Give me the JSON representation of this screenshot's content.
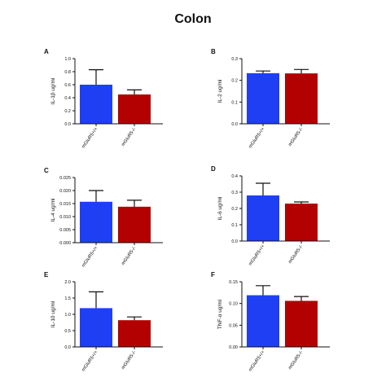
{
  "figure": {
    "title": "Colon"
  },
  "colors": {
    "wt": "#1f3ff5",
    "ko": "#b30000",
    "axis": "#111111"
  },
  "chart_data": [
    {
      "type": "bar",
      "panel": "A",
      "ylabel": "IL-1β ug/ml",
      "categories": [
        "mGluR5+/+",
        "mGluR5-/-"
      ],
      "values": [
        0.6,
        0.45
      ],
      "errors": [
        0.23,
        0.07
      ],
      "ylim": [
        0,
        1.0
      ],
      "yticks": [
        "0.0",
        "0.2",
        "0.4",
        "0.6",
        "0.8",
        "1.0"
      ],
      "ytick_values": [
        0,
        0.2,
        0.4,
        0.6,
        0.8,
        1.0
      ]
    },
    {
      "type": "bar",
      "panel": "B",
      "ylabel": "IL-2 ug/ml",
      "categories": [
        "mGluR5+/+",
        "mGluR5-/-"
      ],
      "values": [
        0.233,
        0.232
      ],
      "errors": [
        0.01,
        0.018
      ],
      "ylim": [
        0,
        0.3
      ],
      "yticks": [
        "0.0",
        "0.1",
        "0.2",
        "0.3"
      ],
      "ytick_values": [
        0,
        0.1,
        0.2,
        0.3
      ]
    },
    {
      "type": "bar",
      "panel": "C",
      "ylabel": "IL-4 ug/ml",
      "categories": [
        "mGluR5+/+",
        "mGluR5-/-"
      ],
      "values": [
        0.0157,
        0.0138
      ],
      "errors": [
        0.0043,
        0.0025
      ],
      "ylim": [
        0,
        0.025
      ],
      "yticks": [
        "0.000",
        "0.005",
        "0.010",
        "0.015",
        "0.020",
        "0.025"
      ],
      "ytick_values": [
        0,
        0.005,
        0.01,
        0.015,
        0.02,
        0.025
      ]
    },
    {
      "type": "bar",
      "panel": "D",
      "ylabel": "IL-6 ug/ml",
      "categories": [
        "mGluR5+/+",
        "mGluR5-/-"
      ],
      "values": [
        0.28,
        0.23
      ],
      "errors": [
        0.075,
        0.01
      ],
      "ylim": [
        0,
        0.4
      ],
      "yticks": [
        "0.0",
        "0.1",
        "0.2",
        "0.3",
        "0.4"
      ],
      "ytick_values": [
        0,
        0.1,
        0.2,
        0.3,
        0.4
      ]
    },
    {
      "type": "bar",
      "panel": "E",
      "ylabel": "IL-10 ug/ml",
      "categories": [
        "mGluR5+/+",
        "mGluR5-/-"
      ],
      "values": [
        1.19,
        0.82
      ],
      "errors": [
        0.5,
        0.1
      ],
      "ylim": [
        0,
        2.0
      ],
      "yticks": [
        "0.0",
        "0.5",
        "1.0",
        "1.5",
        "2.0"
      ],
      "ytick_values": [
        0,
        0.5,
        1.0,
        1.5,
        2.0
      ]
    },
    {
      "type": "bar",
      "panel": "F",
      "ylabel": "TNF-α ug/ml",
      "categories": [
        "mGluR5+/+",
        "mGluR5-/-"
      ],
      "values": [
        0.119,
        0.106
      ],
      "errors": [
        0.022,
        0.01
      ],
      "ylim": [
        0,
        0.15
      ],
      "yticks": [
        "0.00",
        "0.05",
        "0.10",
        "0.15"
      ],
      "ytick_values": [
        0,
        0.05,
        0.1,
        0.15
      ]
    }
  ]
}
